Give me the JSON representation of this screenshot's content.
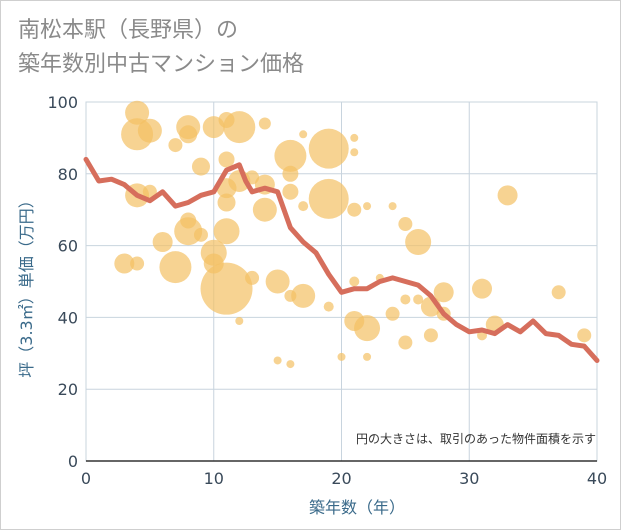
{
  "title_lines": [
    "南松本駅（長野県）の",
    "築年数別中古マンション価格"
  ],
  "chart_data": {
    "type": "scatter",
    "title": "南松本駅（長野県）の築年数別中古マンション価格",
    "xlabel": "築年数（年）",
    "ylabel": "坪（3.3㎡）単価（万円）",
    "xlim": [
      0,
      40
    ],
    "ylim": [
      0,
      100
    ],
    "xticks": [
      0,
      10,
      20,
      30,
      40
    ],
    "yticks": [
      0,
      20,
      40,
      60,
      80,
      100
    ],
    "grid": true,
    "note": "円の大きさは、取引のあった物件面積を示す",
    "colors": {
      "bubble": "#f4c064",
      "line": "#d66e5c"
    },
    "bubbles": [
      {
        "x": 4,
        "y": 97,
        "s": 12
      },
      {
        "x": 4,
        "y": 91,
        "s": 16
      },
      {
        "x": 5,
        "y": 92,
        "s": 12
      },
      {
        "x": 4,
        "y": 74,
        "s": 12
      },
      {
        "x": 5,
        "y": 75,
        "s": 7
      },
      {
        "x": 3,
        "y": 55,
        "s": 10
      },
      {
        "x": 4,
        "y": 55,
        "s": 7
      },
      {
        "x": 6,
        "y": 61,
        "s": 10
      },
      {
        "x": 7,
        "y": 54,
        "s": 16
      },
      {
        "x": 7,
        "y": 88,
        "s": 7
      },
      {
        "x": 8,
        "y": 93,
        "s": 12
      },
      {
        "x": 8,
        "y": 91,
        "s": 9
      },
      {
        "x": 8,
        "y": 64,
        "s": 14
      },
      {
        "x": 8,
        "y": 67,
        "s": 8
      },
      {
        "x": 9,
        "y": 82,
        "s": 9
      },
      {
        "x": 9,
        "y": 63,
        "s": 7
      },
      {
        "x": 10,
        "y": 93,
        "s": 11
      },
      {
        "x": 10,
        "y": 58,
        "s": 13
      },
      {
        "x": 10,
        "y": 55,
        "s": 10
      },
      {
        "x": 11,
        "y": 95,
        "s": 8
      },
      {
        "x": 11,
        "y": 84,
        "s": 8
      },
      {
        "x": 11,
        "y": 76,
        "s": 10
      },
      {
        "x": 11,
        "y": 72,
        "s": 9
      },
      {
        "x": 11,
        "y": 64,
        "s": 13
      },
      {
        "x": 11,
        "y": 48,
        "s": 26
      },
      {
        "x": 12,
        "y": 93,
        "s": 16
      },
      {
        "x": 12,
        "y": 78,
        "s": 11
      },
      {
        "x": 12,
        "y": 39,
        "s": 4
      },
      {
        "x": 13,
        "y": 79,
        "s": 7
      },
      {
        "x": 13,
        "y": 51,
        "s": 7
      },
      {
        "x": 14,
        "y": 94,
        "s": 6
      },
      {
        "x": 14,
        "y": 77,
        "s": 10
      },
      {
        "x": 14,
        "y": 70,
        "s": 12
      },
      {
        "x": 15,
        "y": 50,
        "s": 12
      },
      {
        "x": 15,
        "y": 28,
        "s": 4
      },
      {
        "x": 16,
        "y": 85,
        "s": 16
      },
      {
        "x": 16,
        "y": 80,
        "s": 8
      },
      {
        "x": 16,
        "y": 75,
        "s": 8
      },
      {
        "x": 16,
        "y": 46,
        "s": 6
      },
      {
        "x": 16,
        "y": 27,
        "s": 4
      },
      {
        "x": 17,
        "y": 91,
        "s": 4
      },
      {
        "x": 17,
        "y": 46,
        "s": 12
      },
      {
        "x": 17,
        "y": 71,
        "s": 5
      },
      {
        "x": 19,
        "y": 87,
        "s": 20
      },
      {
        "x": 19,
        "y": 73,
        "s": 20
      },
      {
        "x": 19,
        "y": 43,
        "s": 5
      },
      {
        "x": 20,
        "y": 29,
        "s": 4
      },
      {
        "x": 21,
        "y": 90,
        "s": 4
      },
      {
        "x": 21,
        "y": 86,
        "s": 4
      },
      {
        "x": 21,
        "y": 70,
        "s": 7
      },
      {
        "x": 21,
        "y": 50,
        "s": 5
      },
      {
        "x": 21,
        "y": 39,
        "s": 10
      },
      {
        "x": 22,
        "y": 37,
        "s": 13
      },
      {
        "x": 22,
        "y": 71,
        "s": 4
      },
      {
        "x": 22,
        "y": 29,
        "s": 4
      },
      {
        "x": 23,
        "y": 51,
        "s": 4
      },
      {
        "x": 24,
        "y": 71,
        "s": 4
      },
      {
        "x": 24,
        "y": 41,
        "s": 7
      },
      {
        "x": 25,
        "y": 66,
        "s": 7
      },
      {
        "x": 25,
        "y": 45,
        "s": 5
      },
      {
        "x": 25,
        "y": 33,
        "s": 7
      },
      {
        "x": 26,
        "y": 61,
        "s": 13
      },
      {
        "x": 26,
        "y": 45,
        "s": 5
      },
      {
        "x": 27,
        "y": 43,
        "s": 10
      },
      {
        "x": 27,
        "y": 35,
        "s": 7
      },
      {
        "x": 28,
        "y": 47,
        "s": 10
      },
      {
        "x": 28,
        "y": 41,
        "s": 7
      },
      {
        "x": 31,
        "y": 48,
        "s": 10
      },
      {
        "x": 31,
        "y": 35,
        "s": 5
      },
      {
        "x": 32,
        "y": 38,
        "s": 9
      },
      {
        "x": 33,
        "y": 74,
        "s": 10
      },
      {
        "x": 37,
        "y": 47,
        "s": 7
      },
      {
        "x": 39,
        "y": 35,
        "s": 7
      }
    ],
    "series": [
      {
        "x": [
          0,
          1,
          2,
          3,
          4,
          5,
          6,
          7,
          8,
          9,
          10,
          11,
          12,
          12.5,
          13,
          14,
          15,
          16,
          17,
          18,
          19,
          20,
          21,
          22,
          23,
          24,
          25,
          26,
          27,
          28,
          29,
          30,
          31,
          32,
          33,
          34,
          35,
          36,
          37,
          38,
          39,
          40
        ],
        "y": [
          84,
          78,
          78.5,
          77,
          74,
          72.5,
          75,
          71,
          72,
          74,
          75,
          81,
          82.5,
          78,
          75,
          76,
          75,
          65,
          61,
          58,
          52,
          47,
          48,
          48,
          50,
          51,
          50,
          49,
          46,
          41,
          38,
          36,
          36.5,
          35.5,
          38,
          36,
          39,
          35.5,
          35,
          32.5,
          32,
          28
        ]
      }
    ]
  }
}
